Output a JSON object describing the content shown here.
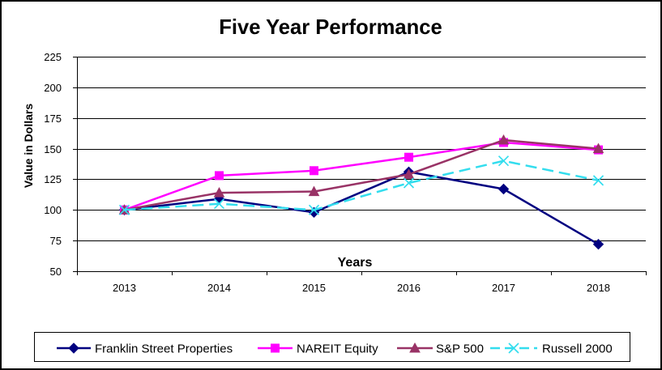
{
  "chart_data": {
    "type": "line",
    "title": "Five Year Performance",
    "xlabel": "Years",
    "ylabel": "Value in Dollars",
    "categories": [
      "2013",
      "2014",
      "2015",
      "2016",
      "2017",
      "2018"
    ],
    "yticks": [
      50,
      75,
      100,
      125,
      150,
      175,
      200,
      225
    ],
    "ylim": [
      50,
      225
    ],
    "grid": true,
    "legend": "bottom",
    "series": [
      {
        "name": "Franklin Street Properties",
        "color": "#000080",
        "marker": "diamond",
        "line_style": "solid",
        "values": [
          100,
          109,
          98,
          131,
          117,
          72
        ]
      },
      {
        "name": "NAREIT Equity",
        "color": "#FF00FF",
        "marker": "square",
        "line_style": "solid",
        "values": [
          100,
          128,
          132,
          143,
          155,
          149
        ]
      },
      {
        "name": "S&P 500",
        "color": "#993366",
        "marker": "triangle",
        "line_style": "solid",
        "values": [
          100,
          114,
          115,
          129,
          157,
          150
        ]
      },
      {
        "name": "Russell 2000",
        "color": "#33DDEE",
        "marker": "x",
        "line_style": "dashed",
        "values": [
          100,
          105,
          100,
          122,
          140,
          124
        ]
      }
    ]
  }
}
